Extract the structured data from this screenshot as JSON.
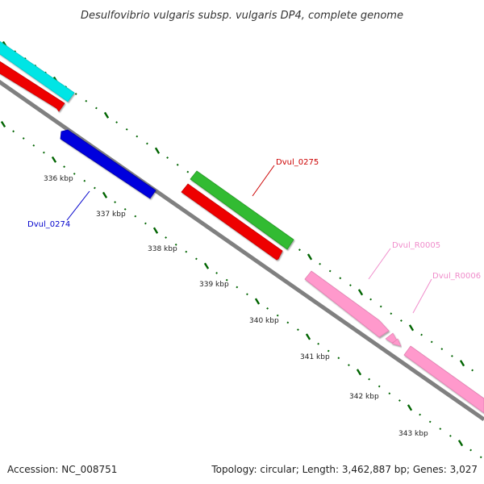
{
  "title": "Desulfovibrio vulgaris subsp. vulgaris DP4, complete genome",
  "footer": {
    "accession": "Accession: NC_008751",
    "summary": "Topology: circular; Length: 3,462,887 bp; Genes: 3,027"
  },
  "tick_labels": [
    "336 kbp",
    "337 kbp",
    "338 kbp",
    "339 kbp",
    "340 kbp",
    "341 kbp",
    "342 kbp",
    "343 kbp"
  ],
  "genes": [
    {
      "label": "Dvul_0274",
      "color": "#0000cc"
    },
    {
      "label": "Dvul_0275",
      "color": "#cc0000"
    },
    {
      "label": "Dvul_R0005",
      "color": "#f08ccb"
    },
    {
      "label": "Dvul_R0006",
      "color": "#f08ccb"
    }
  ],
  "colors": {
    "backbone": "#808080",
    "ticks": "#006400",
    "cyan_feature": "#00e5e5",
    "red_feature": "#ee0000",
    "blue_feature": "#0000dd",
    "green_feature": "#33bb33",
    "pink_feature": "#ff99cc"
  }
}
